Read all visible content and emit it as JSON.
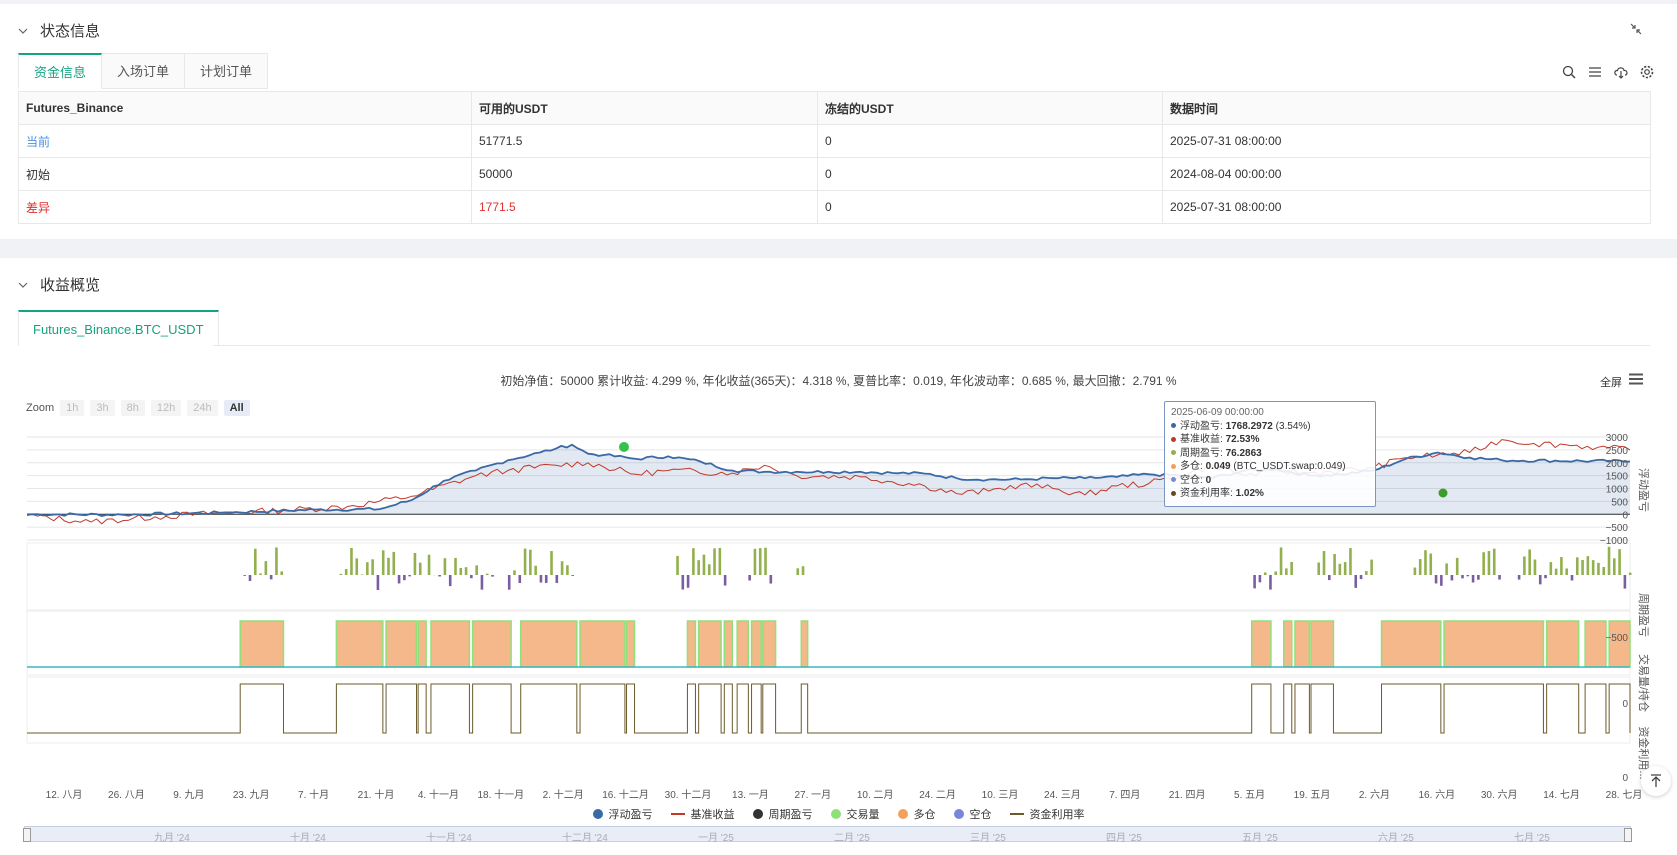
{
  "status_panel": {
    "title": "状态信息",
    "tabs": [
      {
        "label": "资金信息",
        "active": true
      },
      {
        "label": "入场订单",
        "active": false
      },
      {
        "label": "计划订单",
        "active": false
      }
    ],
    "table": {
      "headers": [
        "Futures_Binance",
        "可用的USDT",
        "冻结的USDT",
        "数据时间"
      ],
      "rows": [
        {
          "label": "当前",
          "available": "51771.5",
          "frozen": "0",
          "time": "2025-07-31 08:00:00"
        },
        {
          "label": "初始",
          "available": "50000",
          "frozen": "0",
          "time": "2024-08-04 00:00:00"
        },
        {
          "label": "差异",
          "available": "1771.5",
          "frozen": "0",
          "time": "2025-07-31 08:00:00"
        }
      ]
    }
  },
  "profit_panel": {
    "title": "收益概览",
    "tabs": [
      {
        "label": "Futures_Binance.BTC_USDT",
        "active": true
      }
    ],
    "summary": "初始净值：50000 累计收益: 4.299 %, 年化收益(365天)：4.318 %, 夏普比率：0.019, 年化波动率：0.685 %, 最大回撤：2.791 %",
    "fullscreen_label": "全屏",
    "zoom": {
      "label": "Zoom",
      "buttons": [
        "1h",
        "3h",
        "8h",
        "12h",
        "24h",
        "All"
      ],
      "active": "All"
    }
  },
  "tooltip": {
    "date": "2025-06-09 00:00:00",
    "rows": [
      {
        "name": "浮动盈亏",
        "value": "1768.2972",
        "extra": "(3.54%)",
        "color": "#3a6aa6"
      },
      {
        "name": "基准收益",
        "value": "72.53%",
        "extra": "",
        "color": "#c0392b"
      },
      {
        "name": "周期盈亏",
        "value": "76.2863",
        "extra": "",
        "color": "#90b050"
      },
      {
        "name": "多仓",
        "value": "0.049",
        "extra": "(BTC_USDT.swap:0.049)",
        "color": "#f5a05a"
      },
      {
        "name": "空仓",
        "value": "0",
        "extra": "",
        "color": "#7a86d8"
      },
      {
        "name": "资金利用率",
        "value": "1.02%",
        "extra": "",
        "color": "#6b4a1a"
      }
    ]
  },
  "chart_data": {
    "type": "line",
    "x_ticks": [
      "12. 八月",
      "26. 八月",
      "9. 九月",
      "23. 九月",
      "7. 十月",
      "21. 十月",
      "4. 十一月",
      "18. 十一月",
      "2. 十二月",
      "16. 十二月",
      "30. 十二月",
      "13. 一月",
      "27. 一月",
      "10. 二月",
      "24. 二月",
      "10. 三月",
      "24. 三月",
      "7. 四月",
      "21. 四月",
      "5. 五月",
      "19. 五月",
      "2. 六月",
      "16. 六月",
      "30. 六月",
      "14. 七月",
      "28. 七月"
    ],
    "navigator_labels": [
      "九月 '24",
      "十月 '24",
      "十一月 '24",
      "十二月 '24",
      "一月 '25",
      "二月 '25",
      "三月 '25",
      "四月 '25",
      "五月 '25",
      "六月 '25",
      "七月 '25"
    ],
    "panes": [
      {
        "name": "浮动盈亏",
        "y_ticks": [
          "3000",
          "2500",
          "2000",
          "1500",
          "1000",
          "500",
          "0",
          "−500",
          "−1000"
        ],
        "ylim": [
          -1000,
          3000
        ]
      },
      {
        "name": "周期盈亏",
        "y_ticks": [
          "−500"
        ]
      },
      {
        "name": "交易量/持仓",
        "y_ticks": [
          "0"
        ]
      },
      {
        "name": "资金利用...",
        "y_ticks": [
          "0"
        ]
      }
    ],
    "series": [
      {
        "name": "浮动盈亏",
        "color": "#3a6aa6",
        "points": [
          [
            0,
            0
          ],
          [
            6,
            -20
          ],
          [
            12,
            60
          ],
          [
            18,
            180
          ],
          [
            22,
            200
          ],
          [
            24,
            550
          ],
          [
            26,
            1300
          ],
          [
            28,
            1700
          ],
          [
            30,
            2100
          ],
          [
            32,
            2400
          ],
          [
            33,
            2550
          ],
          [
            34,
            2700
          ],
          [
            35,
            2350
          ],
          [
            36,
            2300
          ],
          [
            38,
            2150
          ],
          [
            40,
            2250
          ],
          [
            42,
            2050
          ],
          [
            44,
            1700
          ],
          [
            46,
            1650
          ],
          [
            48,
            1650
          ],
          [
            50,
            1650
          ],
          [
            52,
            1650
          ],
          [
            54,
            1600
          ],
          [
            56,
            1580
          ],
          [
            58,
            1400
          ],
          [
            60,
            1350
          ],
          [
            62,
            1350
          ],
          [
            64,
            1400
          ],
          [
            66,
            1400
          ],
          [
            68,
            1450
          ],
          [
            70,
            1550
          ],
          [
            72,
            1500
          ],
          [
            74,
            1420
          ],
          [
            76,
            1700
          ],
          [
            78,
            1750
          ],
          [
            80,
            1500
          ],
          [
            82,
            1550
          ],
          [
            84,
            1700
          ],
          [
            86,
            2150
          ],
          [
            88,
            2400
          ],
          [
            90,
            2200
          ],
          [
            92,
            2100
          ],
          [
            100,
            2050
          ]
        ]
      },
      {
        "name": "基准收益",
        "color": "#c0392b",
        "points": [
          [
            0,
            -50
          ],
          [
            4,
            -300
          ],
          [
            8,
            -100
          ],
          [
            12,
            50
          ],
          [
            16,
            150
          ],
          [
            20,
            300
          ],
          [
            24,
            700
          ],
          [
            28,
            1500
          ],
          [
            30,
            1700
          ],
          [
            33,
            1900
          ],
          [
            35,
            2000
          ],
          [
            38,
            1550
          ],
          [
            40,
            1700
          ],
          [
            44,
            1600
          ],
          [
            46,
            1900
          ],
          [
            48,
            1500
          ],
          [
            52,
            1450
          ],
          [
            56,
            1100
          ],
          [
            58,
            800
          ],
          [
            60,
            900
          ],
          [
            62,
            1150
          ],
          [
            64,
            1000
          ],
          [
            66,
            750
          ],
          [
            68,
            1100
          ],
          [
            70,
            1200
          ],
          [
            72,
            1500
          ],
          [
            74,
            1900
          ],
          [
            76,
            1500
          ],
          [
            78,
            1700
          ],
          [
            80,
            1600
          ],
          [
            84,
            1800
          ],
          [
            86,
            2200
          ],
          [
            88,
            2300
          ],
          [
            90,
            2400
          ],
          [
            92,
            2900
          ],
          [
            94,
            2750
          ],
          [
            96,
            2700
          ],
          [
            98,
            2600
          ],
          [
            100,
            2500
          ]
        ]
      }
    ],
    "legend": [
      "浮动盈亏",
      "基准收益",
      "周期盈亏",
      "交易量",
      "多仓",
      "空仓",
      "资金利用率"
    ]
  }
}
